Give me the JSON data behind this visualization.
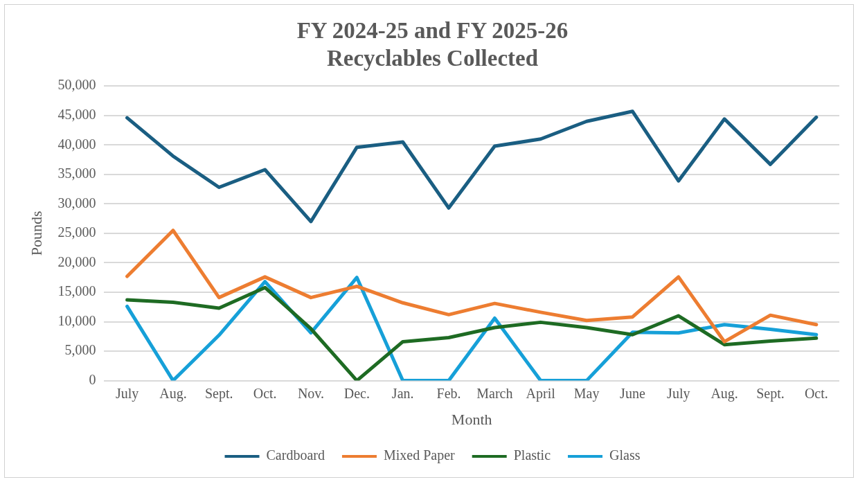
{
  "chart_data": {
    "type": "line",
    "title": "FY 2024-25 and FY 2025-26\nRecyclables Collected",
    "xlabel": "Month",
    "ylabel": "Pounds",
    "categories": [
      "July",
      "Aug.",
      "Sept.",
      "Oct.",
      "Nov.",
      "Dec.",
      "Jan.",
      "Feb.",
      "March",
      "April",
      "May",
      "June",
      "July",
      "Aug.",
      "Sept.",
      "Oct."
    ],
    "series": [
      {
        "name": "Cardboard",
        "color": "#1a5e82",
        "values": [
          44600,
          38100,
          32800,
          35800,
          27000,
          39600,
          40500,
          29300,
          39800,
          41000,
          44000,
          45700,
          33900,
          44400,
          36700,
          44700
        ]
      },
      {
        "name": "Mixed Paper",
        "color": "#ed7d31",
        "values": [
          17700,
          25500,
          14100,
          17600,
          14100,
          16000,
          13200,
          11200,
          13100,
          11600,
          10200,
          10800,
          17600,
          6600,
          11100,
          9500
        ]
      },
      {
        "name": "Plastic",
        "color": "#1e6b23",
        "values": [
          13700,
          13300,
          12300,
          15800,
          8800,
          0,
          6600,
          7300,
          9000,
          9900,
          9000,
          7800,
          11000,
          6100,
          6700,
          7200
        ]
      },
      {
        "name": "Glass",
        "color": "#16a0d8",
        "values": [
          12600,
          0,
          7700,
          16800,
          8100,
          17500,
          0,
          0,
          10600,
          0,
          0,
          8200,
          8100,
          9500,
          8700,
          7800
        ]
      }
    ],
    "ylim": [
      0,
      50000
    ],
    "yticks": [
      {
        "value": 0,
        "label": "0"
      },
      {
        "value": 5000,
        "label": "5,000"
      },
      {
        "value": 10000,
        "label": "10,000"
      },
      {
        "value": 15000,
        "label": "15,000"
      },
      {
        "value": 20000,
        "label": "20,000"
      },
      {
        "value": 25000,
        "label": "25,000"
      },
      {
        "value": 30000,
        "label": "30,000"
      },
      {
        "value": 35000,
        "label": "35,000"
      },
      {
        "value": 40000,
        "label": "40,000"
      },
      {
        "value": 45000,
        "label": "45,000"
      },
      {
        "value": 50000,
        "label": "50,000"
      }
    ],
    "grid": "y",
    "legend": "bottom",
    "marker": "none",
    "line_style": "solid"
  }
}
